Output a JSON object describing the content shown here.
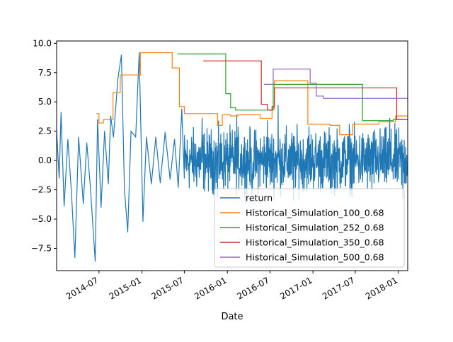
{
  "chart_data": {
    "type": "line",
    "xlabel": "Date",
    "ylabel": "",
    "title": "",
    "xlim": [
      "2014-01-01",
      "2018-02-10"
    ],
    "ylim": [
      -9.4,
      10.2
    ],
    "x_ticks": [
      {
        "date": "2014-07-01",
        "label": "2014-07"
      },
      {
        "date": "2015-01-01",
        "label": "2015-01"
      },
      {
        "date": "2015-07-01",
        "label": "2015-07"
      },
      {
        "date": "2016-01-01",
        "label": "2016-01"
      },
      {
        "date": "2016-07-01",
        "label": "2016-07"
      },
      {
        "date": "2017-01-01",
        "label": "2017-01"
      },
      {
        "date": "2017-07-01",
        "label": "2017-07"
      },
      {
        "date": "2018-01-01",
        "label": "2018-01"
      }
    ],
    "y_ticks": [
      {
        "value": -7.5,
        "label": "−7.5"
      },
      {
        "value": -5.0,
        "label": "−5.0"
      },
      {
        "value": -2.5,
        "label": "−2.5"
      },
      {
        "value": 0.0,
        "label": "0.0"
      },
      {
        "value": 2.5,
        "label": "2.5"
      },
      {
        "value": 5.0,
        "label": "5.0"
      },
      {
        "value": 7.5,
        "label": "7.5"
      },
      {
        "value": 10.0,
        "label": "10.0"
      }
    ],
    "legend_position": "lower-right",
    "series": [
      {
        "name": "return",
        "color": "#1f77b4",
        "style": "noisy",
        "points": [
          {
            "x": "2014-01-01",
            "y": 2.5
          },
          {
            "x": "2014-01-12",
            "y": -1.5
          },
          {
            "x": "2014-01-20",
            "y": 4.1
          },
          {
            "x": "2014-02-02",
            "y": -3.9
          },
          {
            "x": "2014-02-18",
            "y": 1.8
          },
          {
            "x": "2014-03-05",
            "y": -2.6
          },
          {
            "x": "2014-03-20",
            "y": -8.3
          },
          {
            "x": "2014-04-05",
            "y": 2.0
          },
          {
            "x": "2014-04-25",
            "y": -3.7
          },
          {
            "x": "2014-05-10",
            "y": 1.5
          },
          {
            "x": "2014-05-25",
            "y": -2.2
          },
          {
            "x": "2014-06-15",
            "y": -8.6
          },
          {
            "x": "2014-06-25",
            "y": 3.5
          },
          {
            "x": "2014-07-10",
            "y": -4.0
          },
          {
            "x": "2014-07-25",
            "y": 2.5
          },
          {
            "x": "2014-08-10",
            "y": -2.0
          },
          {
            "x": "2014-08-20",
            "y": 3.8
          },
          {
            "x": "2014-09-01",
            "y": 2.0
          },
          {
            "x": "2014-09-20",
            "y": 7.0
          },
          {
            "x": "2014-10-05",
            "y": 9.0
          },
          {
            "x": "2014-10-18",
            "y": -2.5
          },
          {
            "x": "2014-11-01",
            "y": -6.1
          },
          {
            "x": "2014-11-15",
            "y": 2.5
          },
          {
            "x": "2014-12-05",
            "y": 2.0
          },
          {
            "x": "2014-12-20",
            "y": 9.2
          },
          {
            "x": "2015-01-05",
            "y": -5.2
          },
          {
            "x": "2015-01-20",
            "y": 2.0
          },
          {
            "x": "2015-02-10",
            "y": -2.0
          },
          {
            "x": "2015-03-01",
            "y": 2.0
          },
          {
            "x": "2015-03-20",
            "y": -1.9
          },
          {
            "x": "2015-04-10",
            "y": 2.4
          },
          {
            "x": "2015-05-01",
            "y": -1.6
          },
          {
            "x": "2015-05-20",
            "y": 1.8
          },
          {
            "x": "2015-06-05",
            "y": -2.3
          },
          {
            "x": "2015-06-20",
            "y": 4.4
          },
          {
            "x": "2015-07-01",
            "y": -1.5
          }
        ],
        "noise": {
          "start": "2015-07-01",
          "end": "2018-02-10",
          "amplitude": 2.1,
          "spikes": [
            {
              "x": "2015-09-15",
              "y": 3.6
            },
            {
              "x": "2015-11-20",
              "y": -3.2
            },
            {
              "x": "2016-02-10",
              "y": 3.9
            },
            {
              "x": "2016-04-15",
              "y": -3.0
            },
            {
              "x": "2016-06-20",
              "y": 3.4
            },
            {
              "x": "2016-08-05",
              "y": 4.7
            },
            {
              "x": "2016-10-10",
              "y": -3.4
            },
            {
              "x": "2016-12-15",
              "y": 2.9
            },
            {
              "x": "2017-03-20",
              "y": -2.8
            },
            {
              "x": "2017-06-05",
              "y": 3.1
            },
            {
              "x": "2017-09-10",
              "y": -2.5
            },
            {
              "x": "2017-11-25",
              "y": 3.6
            },
            {
              "x": "2018-01-20",
              "y": -3.2
            }
          ]
        }
      },
      {
        "name": "Historical_Simulation_100_0.68",
        "color": "#ff7f0e",
        "style": "step",
        "points": [
          {
            "x": "2014-06-20",
            "y": 4.0
          },
          {
            "x": "2014-07-01",
            "y": 3.2
          },
          {
            "x": "2014-07-20",
            "y": 3.5
          },
          {
            "x": "2014-08-30",
            "y": 5.8
          },
          {
            "x": "2014-09-30",
            "y": 7.3
          },
          {
            "x": "2014-12-25",
            "y": 9.2
          },
          {
            "x": "2015-05-10",
            "y": 7.9
          },
          {
            "x": "2015-06-10",
            "y": 4.6
          },
          {
            "x": "2015-07-01",
            "y": 4.0
          },
          {
            "x": "2015-11-20",
            "y": 3.0
          },
          {
            "x": "2015-12-10",
            "y": 3.9
          },
          {
            "x": "2016-01-15",
            "y": 3.8
          },
          {
            "x": "2016-02-15",
            "y": 3.9
          },
          {
            "x": "2016-05-20",
            "y": 3.6
          },
          {
            "x": "2016-07-10",
            "y": 4.4
          },
          {
            "x": "2016-07-20",
            "y": 6.8
          },
          {
            "x": "2016-12-10",
            "y": 3.1
          },
          {
            "x": "2017-03-15",
            "y": 3.0
          },
          {
            "x": "2017-04-25",
            "y": 2.2
          },
          {
            "x": "2017-06-20",
            "y": 3.1
          },
          {
            "x": "2017-10-10",
            "y": 3.3
          },
          {
            "x": "2017-12-20",
            "y": 3.8
          },
          {
            "x": "2018-02-10",
            "y": 3.8
          }
        ]
      },
      {
        "name": "Historical_Simulation_252_0.68",
        "color": "#2ca02c",
        "style": "step",
        "points": [
          {
            "x": "2015-06-01",
            "y": 9.1
          },
          {
            "x": "2015-12-25",
            "y": 5.7
          },
          {
            "x": "2016-01-15",
            "y": 4.5
          },
          {
            "x": "2016-02-05",
            "y": 4.3
          },
          {
            "x": "2016-07-15",
            "y": 6.5
          },
          {
            "x": "2017-08-01",
            "y": 3.4
          },
          {
            "x": "2017-12-10",
            "y": 3.5
          },
          {
            "x": "2018-02-10",
            "y": 3.5
          }
        ]
      },
      {
        "name": "Historical_Simulation_350_0.68",
        "color": "#d62728",
        "style": "step",
        "points": [
          {
            "x": "2015-09-20",
            "y": 8.5
          },
          {
            "x": "2016-05-25",
            "y": 4.8
          },
          {
            "x": "2016-06-20",
            "y": 4.3
          },
          {
            "x": "2016-07-10",
            "y": 4.6
          },
          {
            "x": "2016-07-20",
            "y": 6.2
          },
          {
            "x": "2017-12-25",
            "y": 3.5
          },
          {
            "x": "2018-02-10",
            "y": 3.5
          }
        ]
      },
      {
        "name": "Historical_Simulation_500_0.68",
        "color": "#9467bd",
        "style": "step",
        "points": [
          {
            "x": "2016-06-05",
            "y": 6.5
          },
          {
            "x": "2016-07-15",
            "y": 7.8
          },
          {
            "x": "2016-12-20",
            "y": 6.6
          },
          {
            "x": "2017-01-15",
            "y": 5.5
          },
          {
            "x": "2017-02-15",
            "y": 5.3
          },
          {
            "x": "2018-02-10",
            "y": 5.3
          }
        ]
      }
    ]
  }
}
